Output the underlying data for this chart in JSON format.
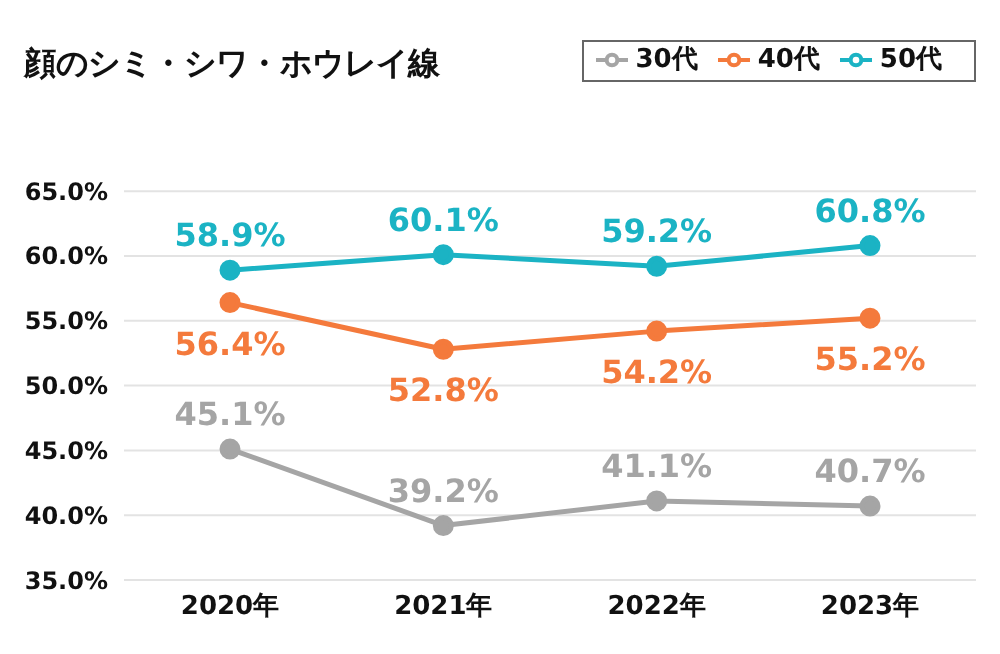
{
  "chart_data": {
    "type": "line",
    "title": "顔のシミ・シワ・ホウレイ線",
    "categories": [
      "2020年",
      "2021年",
      "2022年",
      "2023年"
    ],
    "series": [
      {
        "name": "30代",
        "color": "#a5a5a5",
        "values": [
          45.1,
          39.2,
          41.1,
          40.7
        ],
        "value_labels": [
          "45.1%",
          "39.2%",
          "41.1%",
          "40.7%"
        ]
      },
      {
        "name": "40代",
        "color": "#f47a3c",
        "values": [
          56.4,
          52.8,
          54.2,
          55.2
        ],
        "value_labels": [
          "56.4%",
          "52.8%",
          "54.2%",
          "55.2%"
        ]
      },
      {
        "name": "50代",
        "color": "#1bb3c4",
        "values": [
          58.9,
          60.1,
          59.2,
          60.8
        ],
        "value_labels": [
          "58.9%",
          "60.1%",
          "59.2%",
          "60.8%"
        ]
      }
    ],
    "ylim": [
      35,
      65
    ],
    "yticks": [
      {
        "value": 35,
        "label": "35.0%"
      },
      {
        "value": 40,
        "label": "40.0%"
      },
      {
        "value": 45,
        "label": "45.0%"
      },
      {
        "value": 50,
        "label": "50.0%"
      },
      {
        "value": 55,
        "label": "55.0%"
      },
      {
        "value": 60,
        "label": "60.0%"
      },
      {
        "value": 65,
        "label": "65.0%"
      }
    ],
    "grid": "y",
    "legend": "top right",
    "marker": "circle",
    "line_style": "solid"
  }
}
